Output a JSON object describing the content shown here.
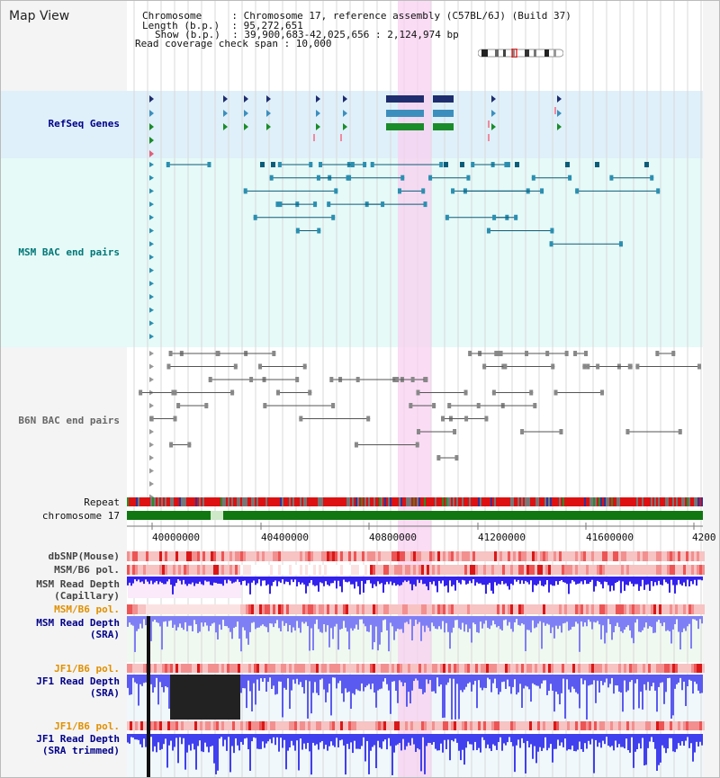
{
  "title": "Map View",
  "info": {
    "line1": "Chromosome     : Chromosome 17, reference assembly (C57BL/6J) (Build 37)",
    "line2": "Length (b.p.)  : 95,272,651",
    "line3": "Show (b.p.)  : 39,900,683-42,025,656 : 2,124,974 bp",
    "line4": "Read coverage check span : 10,000"
  },
  "tracks": {
    "refseq": "RefSeq Genes",
    "msm_bac": "MSM BAC end pairs",
    "b6n_bac": "B6N BAC end pairs",
    "repeat": "Repeat",
    "chromosome": "chromosome 17",
    "dbsnp": "dbSNP(Mouse)",
    "msm_b6_pol": "MSM/B6 pol.",
    "msm_rd_cap_1": "MSM Read Depth",
    "msm_rd_cap_2": "(Capillary)",
    "msm_b6_pol2": "MSM/B6 pol.",
    "msm_rd_sra_1": "MSM Read Depth",
    "msm_rd_sra_2": "(SRA)",
    "jf1_b6_pol": "JF1/B6 pol.",
    "jf1_rd_sra_1": "JF1 Read Depth",
    "jf1_rd_sra_2": "(SRA)",
    "jf1_b6_pol2": "JF1/B6 pol.",
    "jf1_rd_trim_1": "JF1 Read Depth",
    "jf1_rd_trim_2": "(SRA trimmed)"
  },
  "axis": {
    "ticks": [
      "40000000",
      "40400000",
      "40800000",
      "41200000",
      "41600000",
      "4200"
    ]
  },
  "colors": {
    "refseq_bg": "#dff0fa",
    "msm_bg": "#e6faf8",
    "highlight": "#f8d0f0",
    "label_navy": "#000088",
    "label_teal": "#007777",
    "label_orange": "#e09000"
  }
}
